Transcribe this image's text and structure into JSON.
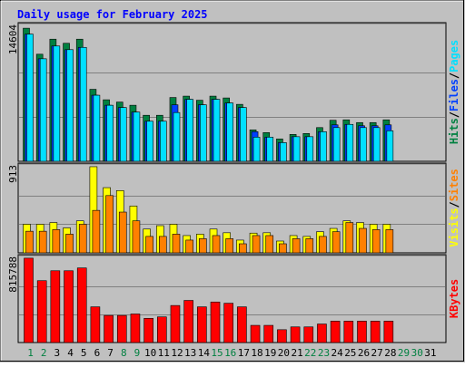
{
  "title": "Daily usage for February 2025",
  "colors": {
    "background": "#c0c0c0",
    "hits": "#008040",
    "files": "#0040ff",
    "pages": "#00e0ff",
    "visits": "#ffff00",
    "sites": "#ff8000",
    "kbytes": "#ff0000",
    "title": "#0000ff",
    "weekday_label": "#000000",
    "weekend_label": "#008040"
  },
  "chart_data": [
    {
      "type": "bar",
      "name": "hits-files-pages",
      "max_label": "14604",
      "ylim": [
        0,
        14604
      ],
      "legend": [
        {
          "text": "Hits",
          "color": "#008040"
        },
        {
          "text": "/",
          "color": "#000000"
        },
        {
          "text": "Files",
          "color": "#0040ff"
        },
        {
          "text": "/",
          "color": "#000000"
        },
        {
          "text": "Pages",
          "color": "#00e0ff"
        }
      ],
      "categories": [
        "1",
        "2",
        "3",
        "4",
        "5",
        "6",
        "7",
        "8",
        "9",
        "10",
        "11",
        "12",
        "13",
        "14",
        "15",
        "16",
        "17",
        "18",
        "19",
        "20",
        "21",
        "22",
        "23",
        "24",
        "25",
        "26",
        "27",
        "28"
      ],
      "series": [
        {
          "name": "Hits",
          "values": [
            14604,
            11750,
            13400,
            12950,
            13400,
            7900,
            6750,
            6500,
            6150,
            5050,
            5050,
            7000,
            7150,
            6700,
            7150,
            6950,
            6250,
            3450,
            3150,
            2450,
            2950,
            3050,
            3700,
            4500,
            4550,
            4250,
            4250,
            4550
          ]
        },
        {
          "name": "Files",
          "values": [
            13950,
            11250,
            12650,
            12250,
            12500,
            7250,
            6150,
            5900,
            5400,
            4400,
            4400,
            6200,
            6800,
            6200,
            6800,
            6400,
            5900,
            3250,
            2650,
            2050,
            2700,
            2700,
            3250,
            4000,
            4050,
            3900,
            3900,
            4000
          ]
        },
        {
          "name": "Pages",
          "values": [
            13950,
            11250,
            12650,
            12250,
            12500,
            7250,
            6150,
            5900,
            5400,
            4400,
            4400,
            5350,
            6800,
            6200,
            6800,
            6400,
            5900,
            2650,
            2650,
            2050,
            2700,
            2700,
            3250,
            3700,
            4050,
            3700,
            3700,
            3350
          ]
        }
      ]
    },
    {
      "type": "bar",
      "name": "visits-sites",
      "max_label": "913",
      "ylim": [
        0,
        913
      ],
      "legend": [
        {
          "text": "Visits",
          "color": "#ffff00"
        },
        {
          "text": "/",
          "color": "#000000"
        },
        {
          "text": "Sites",
          "color": "#ff8000"
        }
      ],
      "categories": [
        "1",
        "2",
        "3",
        "4",
        "5",
        "6",
        "7",
        "8",
        "9",
        "10",
        "11",
        "12",
        "13",
        "14",
        "15",
        "16",
        "17",
        "18",
        "19",
        "20",
        "21",
        "22",
        "23",
        "24",
        "25",
        "26",
        "27",
        "28"
      ],
      "series": [
        {
          "name": "Visits",
          "values": [
            303,
            303,
            321,
            264,
            339,
            913,
            691,
            660,
            496,
            252,
            288,
            303,
            183,
            198,
            252,
            213,
            135,
            209,
            213,
            125,
            183,
            174,
            224,
            259,
            339,
            321,
            303,
            303
          ]
        },
        {
          "name": "Sites",
          "values": [
            229,
            229,
            246,
            198,
            303,
            450,
            607,
            432,
            339,
            174,
            174,
            198,
            135,
            150,
            183,
            150,
            96,
            183,
            183,
            96,
            150,
            150,
            174,
            224,
            321,
            259,
            246,
            246
          ]
        }
      ]
    },
    {
      "type": "bar",
      "name": "kbytes",
      "max_label": "815788",
      "ylim": [
        0,
        815788
      ],
      "legend": [
        {
          "text": "KBytes",
          "color": "#ff0000"
        }
      ],
      "categories": [
        "1",
        "2",
        "3",
        "4",
        "5",
        "6",
        "7",
        "8",
        "9",
        "10",
        "11",
        "12",
        "13",
        "14",
        "15",
        "16",
        "17",
        "18",
        "19",
        "20",
        "21",
        "22",
        "23",
        "24",
        "25",
        "26",
        "27",
        "28"
      ],
      "series": [
        {
          "name": "KBytes",
          "values": [
            815788,
            598000,
            694000,
            694000,
            721000,
            345000,
            262000,
            262000,
            276000,
            234000,
            248000,
            358000,
            407000,
            345000,
            392000,
            380000,
            345000,
            166000,
            166000,
            124000,
            151000,
            151000,
            179000,
            207000,
            207000,
            207000,
            207000,
            207000
          ]
        }
      ]
    }
  ],
  "days": [
    {
      "label": "1",
      "weekend": true
    },
    {
      "label": "2",
      "weekend": true
    },
    {
      "label": "3",
      "weekend": false
    },
    {
      "label": "4",
      "weekend": false
    },
    {
      "label": "5",
      "weekend": false
    },
    {
      "label": "6",
      "weekend": false
    },
    {
      "label": "7",
      "weekend": false
    },
    {
      "label": "8",
      "weekend": true
    },
    {
      "label": "9",
      "weekend": true
    },
    {
      "label": "10",
      "weekend": false
    },
    {
      "label": "11",
      "weekend": false
    },
    {
      "label": "12",
      "weekend": false
    },
    {
      "label": "13",
      "weekend": false
    },
    {
      "label": "14",
      "weekend": false
    },
    {
      "label": "15",
      "weekend": true
    },
    {
      "label": "16",
      "weekend": true
    },
    {
      "label": "17",
      "weekend": false
    },
    {
      "label": "18",
      "weekend": false
    },
    {
      "label": "19",
      "weekend": false
    },
    {
      "label": "20",
      "weekend": false
    },
    {
      "label": "21",
      "weekend": false
    },
    {
      "label": "22",
      "weekend": true
    },
    {
      "label": "23",
      "weekend": true
    },
    {
      "label": "24",
      "weekend": false
    },
    {
      "label": "25",
      "weekend": false
    },
    {
      "label": "26",
      "weekend": false
    },
    {
      "label": "27",
      "weekend": false
    },
    {
      "label": "28",
      "weekend": false
    },
    {
      "label": "29",
      "weekend": true
    },
    {
      "label": "30",
      "weekend": true
    },
    {
      "label": "31",
      "weekend": false
    }
  ]
}
